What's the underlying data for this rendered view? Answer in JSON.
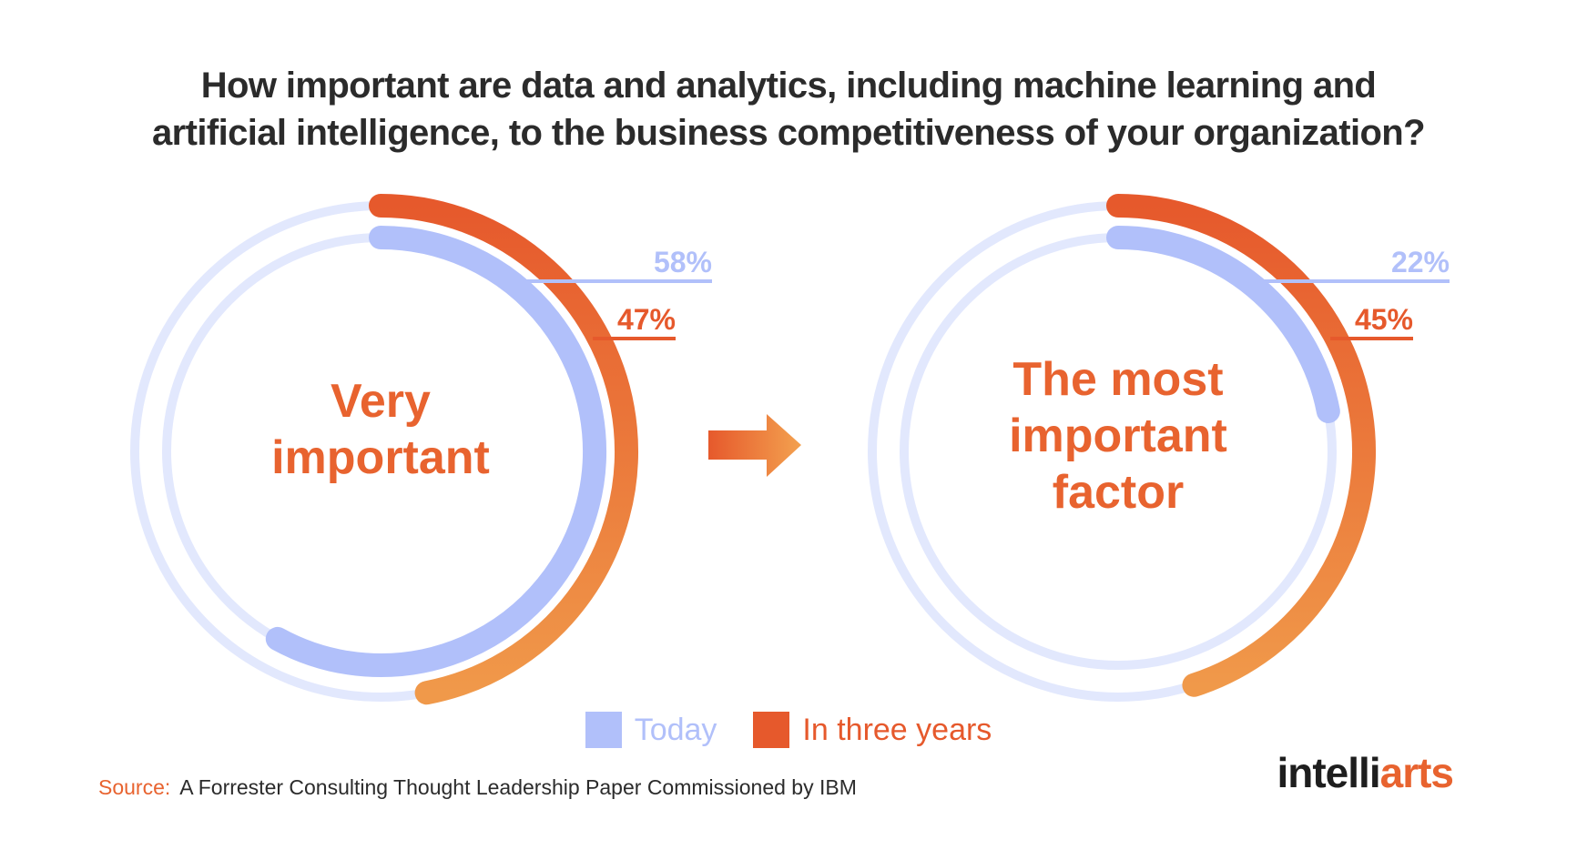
{
  "title": {
    "line1": "How important are data and  analytics, including machine learning and",
    "line2": "artificial intelligence, to the business competitiveness of your organization?"
  },
  "chart_data": {
    "type": "donut",
    "series": [
      {
        "name": "Today",
        "color": "#b1c0fa"
      },
      {
        "name": "In three years",
        "color": "#e6592c"
      }
    ],
    "charts": [
      {
        "label_lines": [
          "Very",
          "important"
        ],
        "values": [
          {
            "series": "Today",
            "value": 58,
            "label": "58%"
          },
          {
            "series": "In three years",
            "value": 47,
            "label": "47%"
          }
        ]
      },
      {
        "label_lines": [
          "The most",
          "important",
          "factor"
        ],
        "values": [
          {
            "series": "Today",
            "value": 22,
            "label": "22%"
          },
          {
            "series": "In three years",
            "value": 45,
            "label": "45%"
          }
        ]
      }
    ]
  },
  "colors": {
    "track": "#e2e8fd",
    "today": "#b1c0fa",
    "future_start": "#e6592c",
    "future_end": "#f0994a",
    "label": "#e8632f",
    "text": "#2b2b2b"
  },
  "arrow_icon": "arrow-right-icon",
  "source": {
    "label": "Source:",
    "text": "A Forrester Consulting Thought Leadership Paper Commissioned by IBM"
  },
  "logo": {
    "part1": "intelli",
    "part2": "arts"
  }
}
